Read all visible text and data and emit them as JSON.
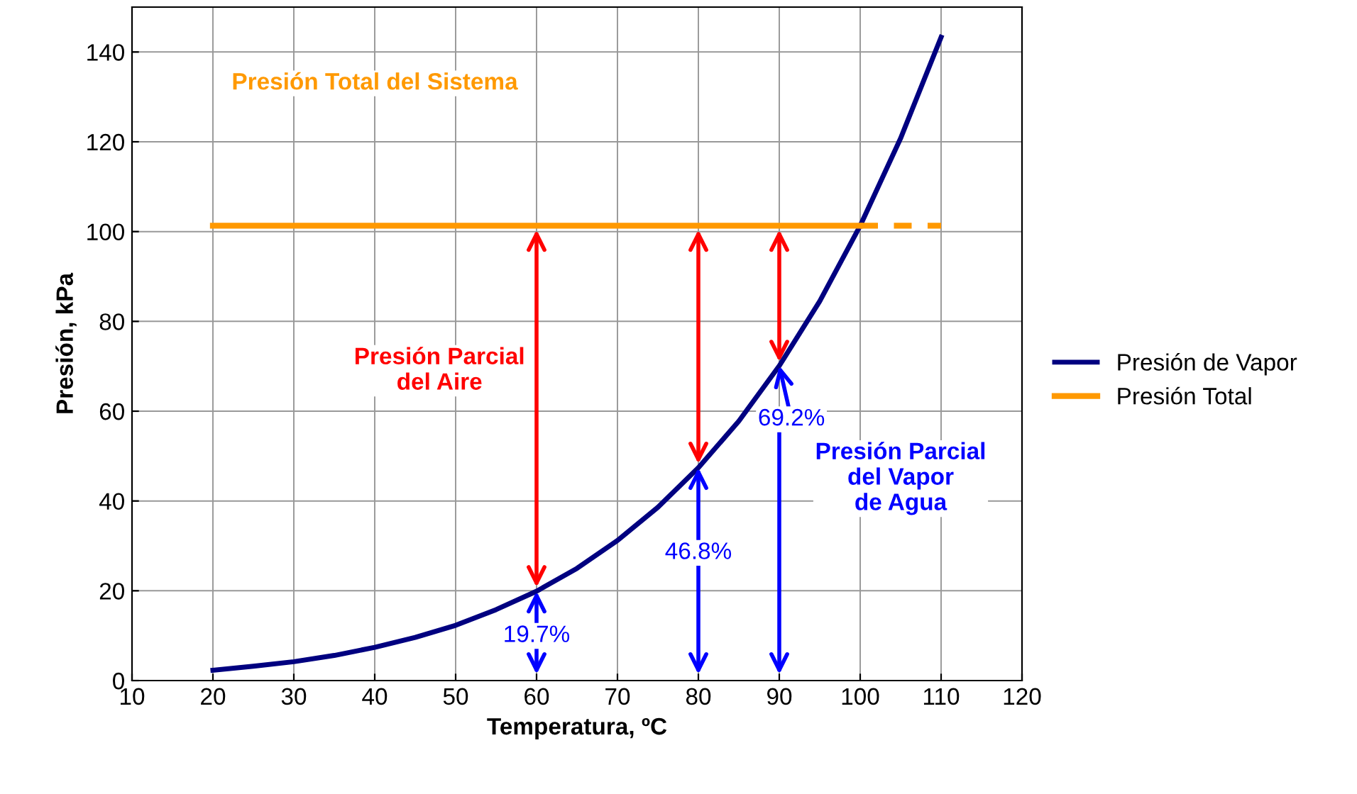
{
  "chart_data": {
    "type": "line",
    "xlabel": "Temperatura, ºC",
    "ylabel": "Presión, kPa",
    "xlim": [
      10,
      120
    ],
    "xticks": [
      10,
      20,
      30,
      40,
      50,
      60,
      70,
      80,
      90,
      100,
      110,
      120
    ],
    "ylim": [
      0,
      150
    ],
    "yticks": [
      0,
      20,
      40,
      60,
      80,
      100,
      120,
      140
    ],
    "grid": true,
    "legend": "right",
    "series": [
      {
        "name": "Presión de Vapor",
        "color": "#000080",
        "x": [
          20,
          25,
          30,
          35,
          40,
          45,
          50,
          55,
          60,
          65,
          70,
          75,
          80,
          85,
          90,
          95,
          100,
          105,
          110
        ],
        "values": [
          2.3,
          3.2,
          4.2,
          5.6,
          7.4,
          9.6,
          12.3,
          15.8,
          19.9,
          25.0,
          31.2,
          38.6,
          47.4,
          57.8,
          70.1,
          84.5,
          101.3,
          120.8,
          143.3
        ]
      },
      {
        "name": "Presión Total",
        "color": "#ff9900",
        "x": [
          20,
          100
        ],
        "values": [
          101.3,
          101.3
        ]
      },
      {
        "color": "#ff9900",
        "x": [
          100,
          110
        ],
        "values": [
          101.3,
          101.3
        ],
        "line_style": "dashed"
      }
    ],
    "annotations": [
      "Presión Total del Sistema",
      "Presión Parcial\ndel Aire",
      "Presión Parcial\ndel Vapor\nde Agua",
      {
        "text": "19.7%",
        "x": 60,
        "y": 19.9
      },
      {
        "text": "46.8%",
        "x": 80,
        "y": 47.4
      },
      {
        "text": "69.2%",
        "x": 90,
        "y": 70.1
      }
    ]
  }
}
